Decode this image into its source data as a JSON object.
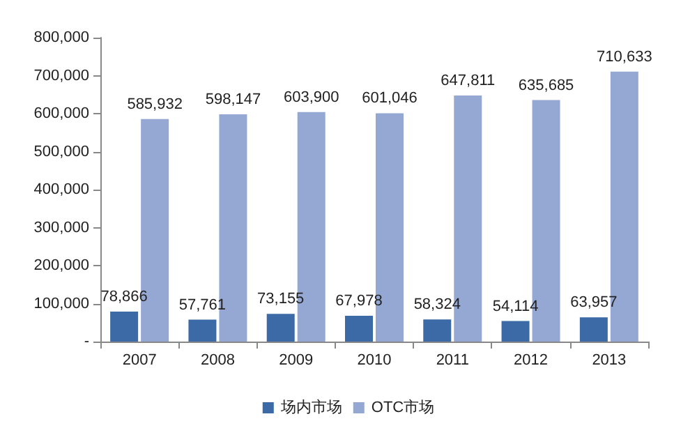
{
  "chart_data": {
    "type": "bar",
    "categories": [
      "2007",
      "2008",
      "2009",
      "2010",
      "2011",
      "2012",
      "2013"
    ],
    "series": [
      {
        "name": "场内市场",
        "color": "#3c6aa6",
        "values": [
          78866,
          57761,
          73155,
          67978,
          58324,
          54114,
          63957
        ],
        "value_labels": [
          "78,866",
          "57,761",
          "73,155",
          "67,978",
          "58,324",
          "54,114",
          "63,957"
        ]
      },
      {
        "name": "OTC市场",
        "color": "#95a8d4",
        "values": [
          585932,
          598147,
          603900,
          601046,
          647811,
          635685,
          710633
        ],
        "value_labels": [
          "585,932",
          "598,147",
          "603,900",
          "601,046",
          "647,811",
          "635,685",
          "710,633"
        ]
      }
    ],
    "ylim": [
      0,
      800000
    ],
    "yticks": [
      {
        "value": 0,
        "label": "-"
      },
      {
        "value": 100000,
        "label": "100,000"
      },
      {
        "value": 200000,
        "label": "200,000"
      },
      {
        "value": 300000,
        "label": "300,000"
      },
      {
        "value": 400000,
        "label": "400,000"
      },
      {
        "value": 500000,
        "label": "500,000"
      },
      {
        "value": 600000,
        "label": "600,000"
      },
      {
        "value": 700000,
        "label": "700,000"
      },
      {
        "value": 800000,
        "label": "800,000"
      }
    ],
    "legend": "bottom",
    "grid": false
  }
}
